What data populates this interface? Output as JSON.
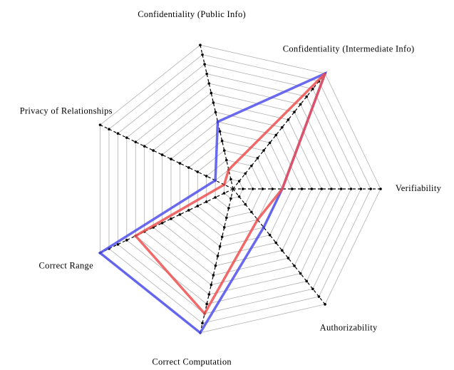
{
  "chart_data": {
    "type": "radar",
    "categories": [
      "Verifiability",
      "Confidentiality (Intermediate Info)",
      "Confidentiality (Public Info)",
      "Privacy of Relationships",
      "Correct Range",
      "Correct Computation",
      "Authorizability"
    ],
    "series": [
      {
        "color": "#5050ee",
        "values": [
          5,
          15,
          7,
          2,
          15,
          15,
          5
        ]
      },
      {
        "color": "#ee5050",
        "values": [
          5,
          15,
          2,
          1,
          11,
          13,
          4
        ]
      }
    ],
    "rlim": [
      0,
      15
    ],
    "rticks": [
      1,
      2,
      3,
      4,
      5,
      6,
      7,
      8,
      9,
      10,
      11,
      12,
      13,
      14,
      15
    ],
    "grid": true
  }
}
